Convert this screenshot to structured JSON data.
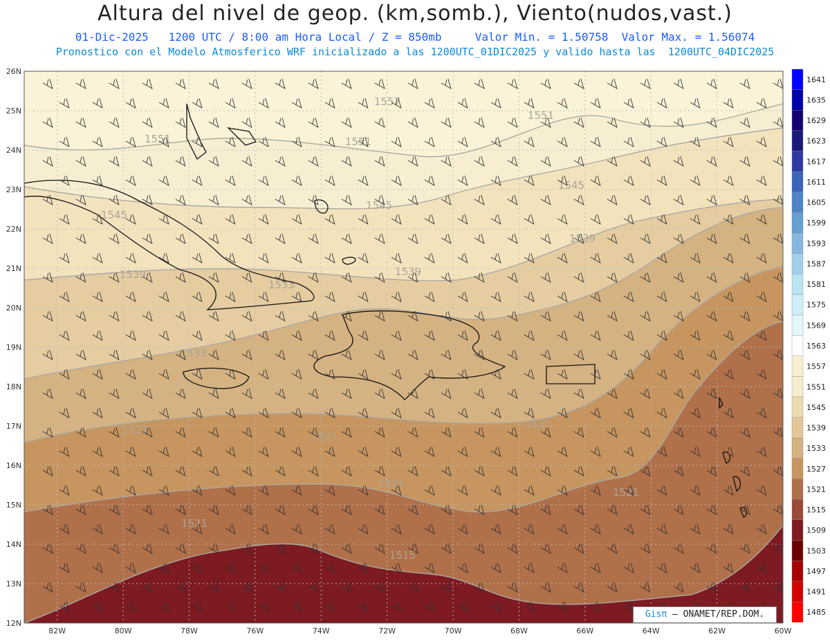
{
  "header": {
    "title": "Altura del nivel de geop. (km,somb.), Viento(nudos,vast.)",
    "line2": "01-Dic-2025   1200 UTC / 8:00 am Hora Local / Z = 850mb     Valor Min. = 1.50758  Valor Max. = 1.56074",
    "line3": "Pronostico con el Modelo Atmosferico WRF inicializado a las 1200UTC_01DIC2025 y valido hasta las  1200UTC_04DIC2025"
  },
  "map": {
    "lon_range": [
      -83,
      -60
    ],
    "lat_range": [
      12,
      26
    ],
    "lat_ticks": [
      "12N",
      "13N",
      "14N",
      "15N",
      "16N",
      "17N",
      "18N",
      "19N",
      "20N",
      "21N",
      "22N",
      "23N",
      "24N",
      "25N",
      "26N"
    ],
    "lon_ticks": [
      "82W",
      "80W",
      "78W",
      "76W",
      "74W",
      "72W",
      "70W",
      "68W",
      "66W",
      "64W",
      "62W",
      "60W"
    ],
    "contour_labels": [
      "1557",
      "1551",
      "1551",
      "1551",
      "1545",
      "1545",
      "1545",
      "1539",
      "1539",
      "1539",
      "1533",
      "1533",
      "1527",
      "1527",
      "1527",
      "1521",
      "1521",
      "1521",
      "1515"
    ],
    "islands": [
      "Cuba",
      "La Española",
      "Jamaica",
      "Puerto Rico",
      "Bahamas",
      "Antillas Menores"
    ]
  },
  "colorbar": {
    "levels": [
      "1641",
      "1635",
      "1629",
      "1623",
      "1617",
      "1611",
      "1605",
      "1599",
      "1593",
      "1587",
      "1581",
      "1575",
      "1569",
      "1563",
      "1557",
      "1551",
      "1545",
      "1539",
      "1533",
      "1527",
      "1521",
      "1515",
      "1509",
      "1503",
      "1497",
      "1491",
      "1485"
    ],
    "colors": [
      "#0000ff",
      "#0000a8",
      "#14006e",
      "#1a1a7a",
      "#2e3aa0",
      "#3a64b8",
      "#4f85c8",
      "#669fd4",
      "#86b8df",
      "#9fd0ea",
      "#b9e4f2",
      "#cfeef8",
      "#e3f7fb",
      "#ffffff",
      "#f7eed2",
      "#f6ecce",
      "#ecdcae",
      "#e2c798",
      "#d5b282",
      "#c7955f",
      "#b0704a",
      "#9a4a36",
      "#7d1a22",
      "#6b0000",
      "#a80000",
      "#d40000",
      "#ff0000"
    ]
  },
  "credit": {
    "brand": "Gisπ",
    "text": " – ONAMET/REP.DOM."
  }
}
